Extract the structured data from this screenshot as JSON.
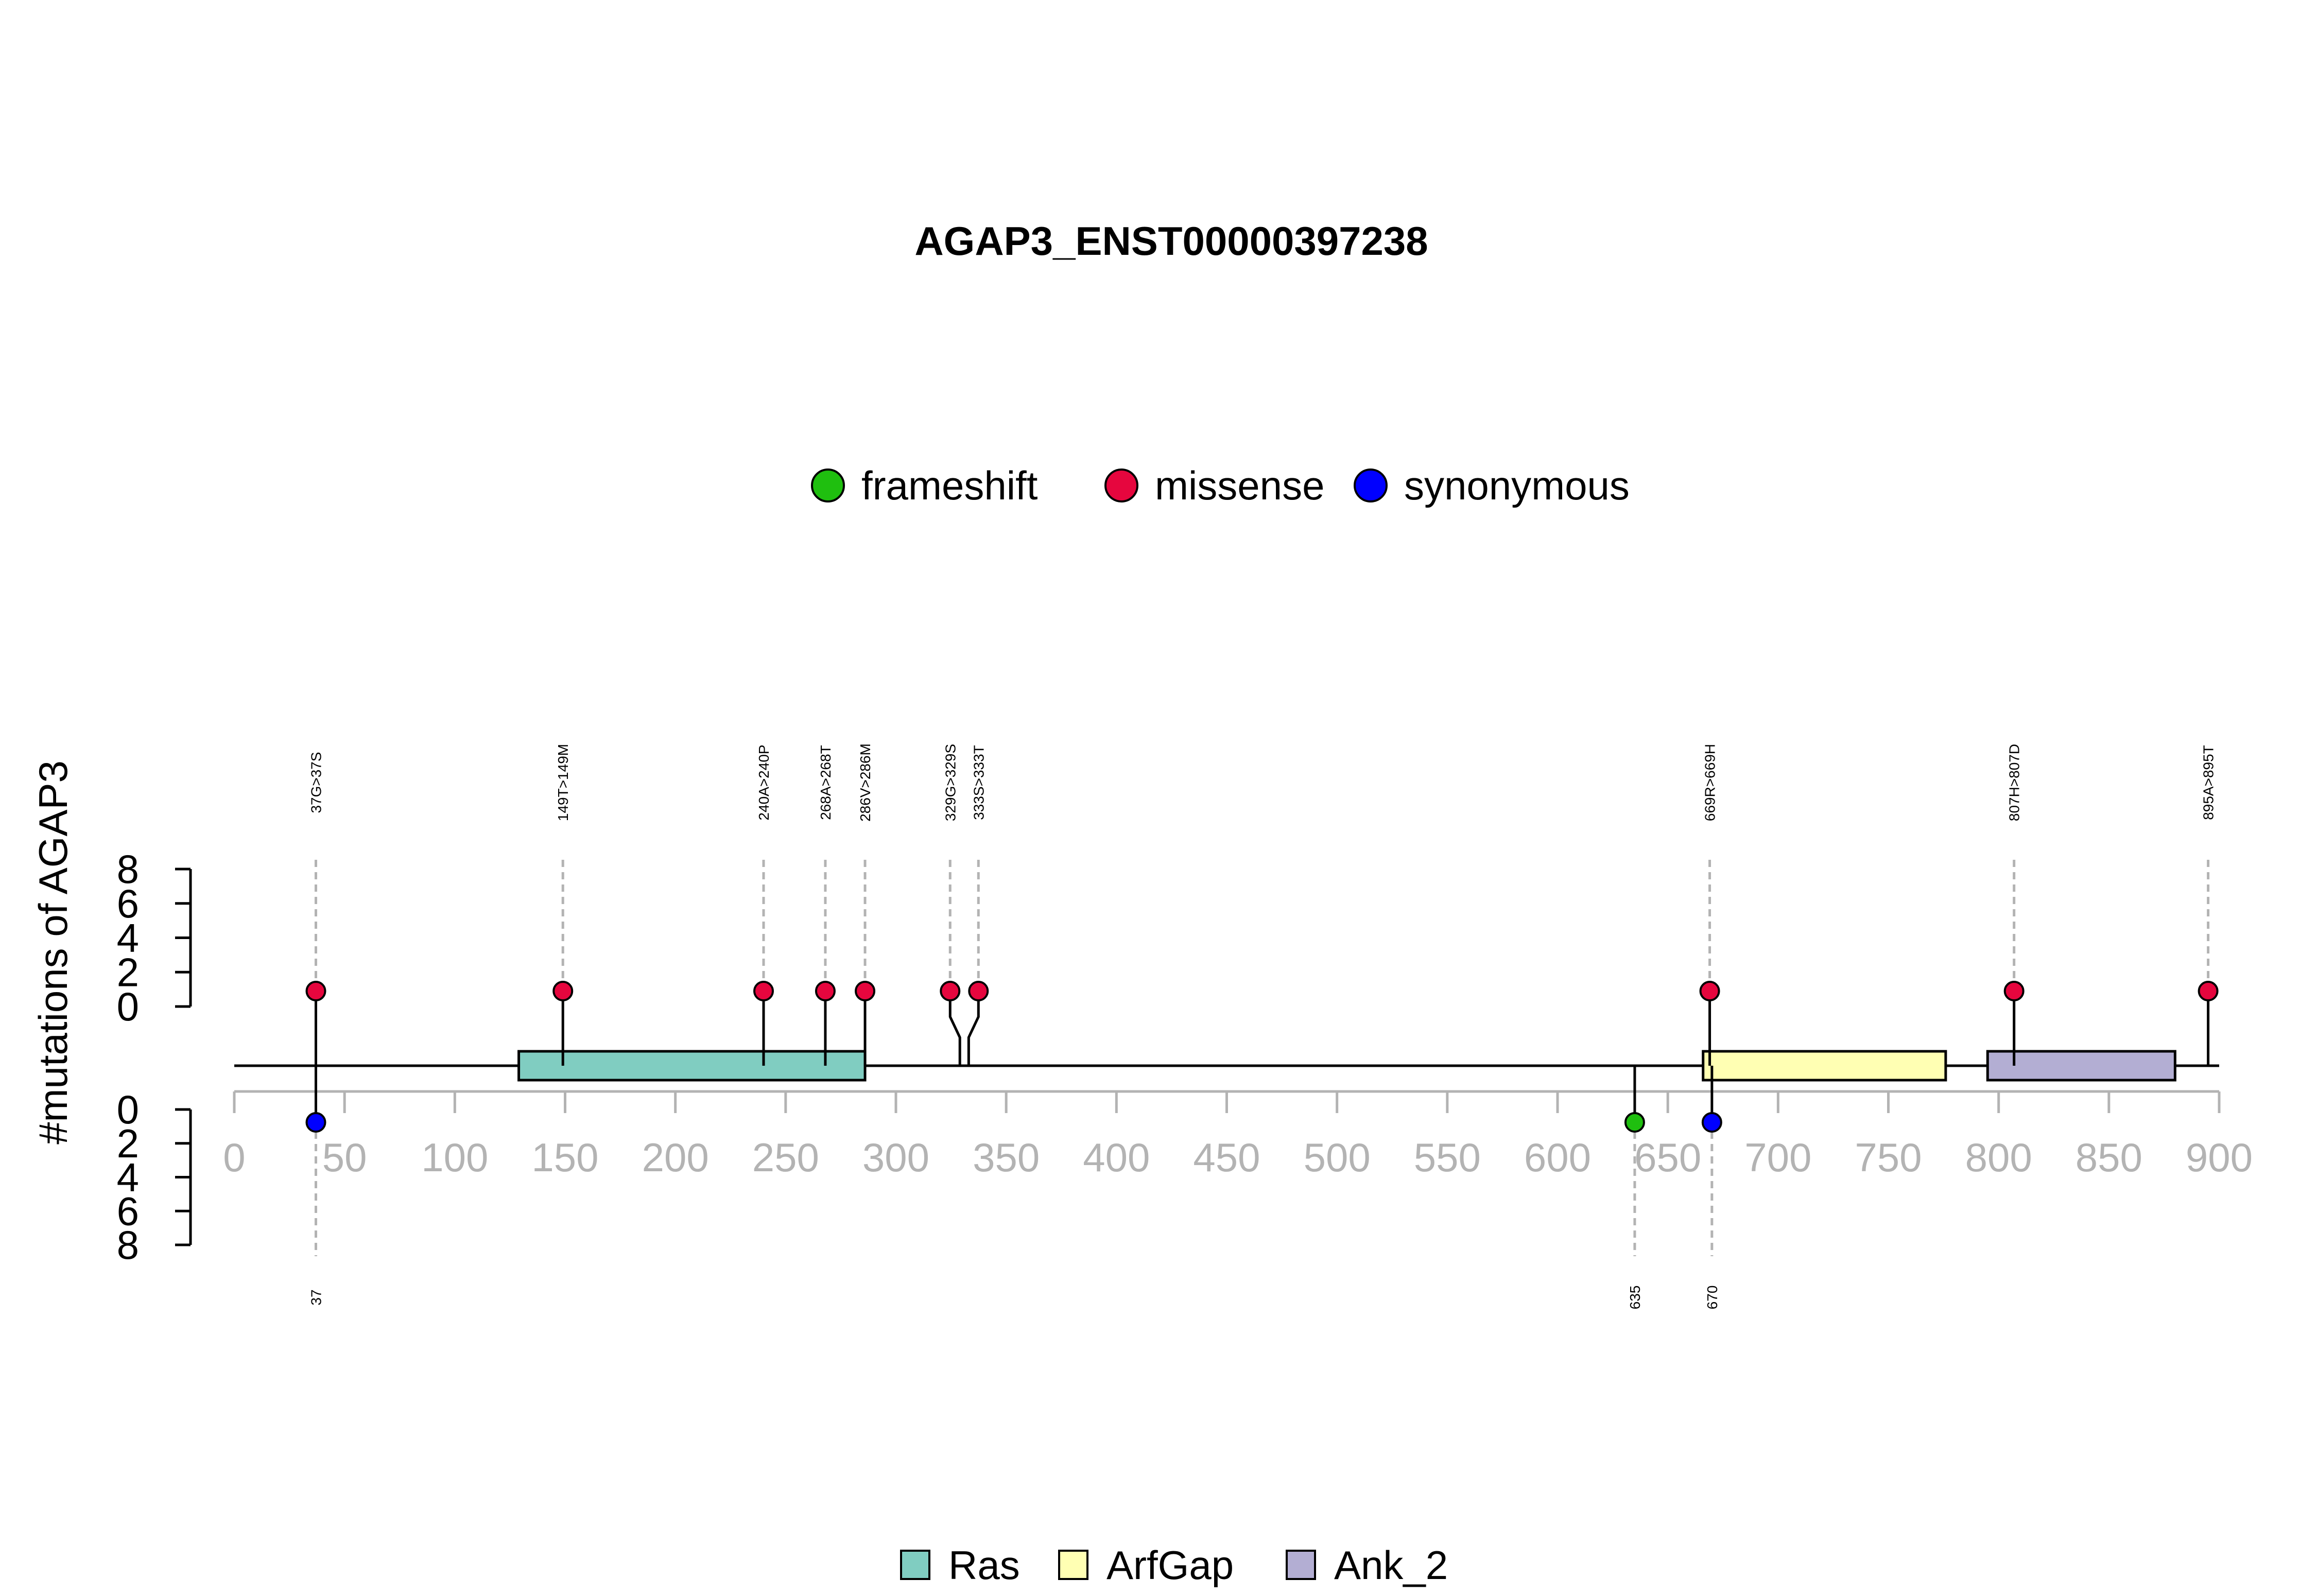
{
  "chart_data": {
    "type": "lollipop",
    "title": "AGAP3_ENST00000397238",
    "ylabel": "#mutations of AGAP3",
    "xlim": [
      0,
      900
    ],
    "x_ticks": [
      0,
      50,
      100,
      150,
      200,
      250,
      300,
      350,
      400,
      450,
      500,
      550,
      600,
      650,
      700,
      750,
      800,
      850,
      900
    ],
    "y_ticks_top": [
      0,
      2,
      4,
      6,
      8
    ],
    "y_ticks_bottom": [
      0,
      2,
      4,
      6,
      8
    ],
    "mutation_legend": [
      {
        "name": "frameshift",
        "color": "#1FBF0F"
      },
      {
        "name": "missense",
        "color": "#E6063E"
      },
      {
        "name": "synonymous",
        "color": "#0000FF"
      }
    ],
    "domain_legend": [
      {
        "name": "Ras",
        "color": "#80CDC1"
      },
      {
        "name": "ArfGap",
        "color": "#FFFFB3"
      },
      {
        "name": "Ank_2",
        "color": "#B3AED3"
      }
    ],
    "domains": [
      {
        "name": "Ras",
        "start": 129,
        "end": 286,
        "color": "#80CDC1"
      },
      {
        "name": "ArfGap",
        "start": 666,
        "end": 776,
        "color": "#FFFFB3"
      },
      {
        "name": "Ank_2",
        "start": 795,
        "end": 880,
        "color": "#B3AED3"
      }
    ],
    "top_mutations": [
      {
        "pos": 37,
        "label": "37G>37S",
        "count": 1,
        "type": "missense"
      },
      {
        "pos": 149,
        "label": "149T>149M",
        "count": 1,
        "type": "missense"
      },
      {
        "pos": 240,
        "label": "240A>240P",
        "count": 1,
        "type": "missense"
      },
      {
        "pos": 268,
        "label": "268A>268T",
        "count": 1,
        "type": "missense"
      },
      {
        "pos": 286,
        "label": "286V>286M",
        "count": 1,
        "type": "missense"
      },
      {
        "pos": 329,
        "label": "329G>329S",
        "count": 1,
        "type": "missense"
      },
      {
        "pos": 333,
        "label": "333S>333T",
        "count": 1,
        "type": "missense"
      },
      {
        "pos": 669,
        "label": "669R>669H",
        "count": 1,
        "type": "missense"
      },
      {
        "pos": 807,
        "label": "807H>807D",
        "count": 1,
        "type": "missense"
      },
      {
        "pos": 895,
        "label": "895A>895T",
        "count": 1,
        "type": "missense"
      }
    ],
    "bottom_mutations": [
      {
        "pos": 37,
        "label": "37",
        "count": 1,
        "type": "synonymous"
      },
      {
        "pos": 635,
        "label": "635",
        "count": 1,
        "type": "frameshift"
      },
      {
        "pos": 670,
        "label": "670",
        "count": 1,
        "type": "synonymous"
      }
    ]
  }
}
